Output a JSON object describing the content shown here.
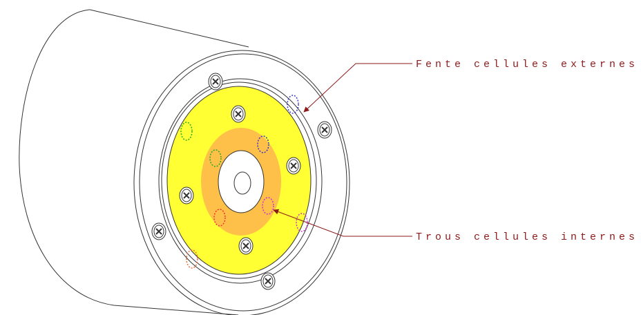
{
  "labels": {
    "outer": "Fente cellules externes",
    "inner": "Trous cellules internes"
  }
}
